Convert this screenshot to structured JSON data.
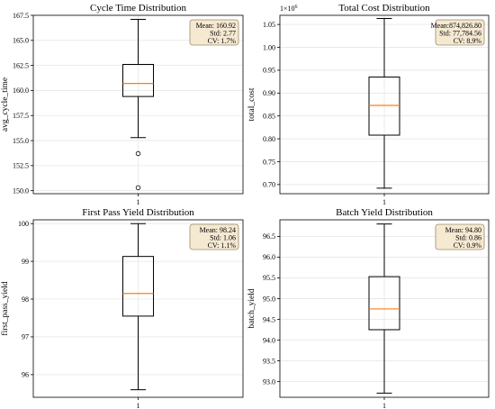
{
  "chart_data": [
    {
      "type": "box",
      "title": "Cycle Time Distribution",
      "xlabel": "",
      "ylabel": "avg_cycle_time",
      "categories": [
        "1"
      ],
      "ylim": [
        149.7,
        167.5
      ],
      "yticks": [
        150.0,
        152.5,
        155.0,
        157.5,
        160.0,
        162.5,
        165.0,
        167.5
      ],
      "ytick_labels": [
        "150.0",
        "152.5",
        "155.0",
        "157.5",
        "160.0",
        "162.5",
        "165.0",
        "167.5"
      ],
      "offset_label": "",
      "box": {
        "whisker_low": 155.3,
        "q1": 159.4,
        "median": 160.7,
        "q3": 162.6,
        "whisker_high": 167.1,
        "outliers": [
          153.7,
          150.3
        ]
      },
      "stats_box": [
        "Mean: 160.92",
        "Std: 2.77",
        "CV: 1.7%"
      ],
      "grid": true
    },
    {
      "type": "box",
      "title": "Total Cost Distribution",
      "xlabel": "",
      "ylabel": "total_cost",
      "categories": [
        "1"
      ],
      "ylim": [
        0.68,
        1.07
      ],
      "yticks": [
        0.7,
        0.75,
        0.8,
        0.85,
        0.9,
        0.95,
        1.0,
        1.05
      ],
      "ytick_labels": [
        "0.70",
        "0.75",
        "0.80",
        "0.85",
        "0.90",
        "0.95",
        "1.00",
        "1.05"
      ],
      "offset_label": "1e6",
      "box": {
        "whisker_low": 0.692,
        "q1": 0.808,
        "median": 0.873,
        "q3": 0.935,
        "whisker_high": 1.063,
        "outliers": []
      },
      "stats_box": [
        "Mean:874,826.80",
        "Std: 77,784.56",
        "CV: 8.9%"
      ],
      "grid": true
    },
    {
      "type": "box",
      "title": "First Pass Yield Distribution",
      "xlabel": "",
      "ylabel": "first_pass_yield",
      "categories": [
        "1"
      ],
      "ylim": [
        95.4,
        100.1
      ],
      "yticks": [
        96,
        97,
        98,
        99,
        100
      ],
      "ytick_labels": [
        "96",
        "97",
        "98",
        "99",
        "100"
      ],
      "offset_label": "",
      "box": {
        "whisker_low": 95.6,
        "q1": 97.55,
        "median": 98.15,
        "q3": 99.13,
        "whisker_high": 100.0,
        "outliers": []
      },
      "stats_box": [
        "Mean: 98.24",
        "Std: 1.06",
        "CV: 1.1%"
      ],
      "grid": true
    },
    {
      "type": "box",
      "title": "Batch Yield Distribution",
      "xlabel": "",
      "ylabel": "batch_yield",
      "categories": [
        "1"
      ],
      "ylim": [
        92.62,
        96.9
      ],
      "yticks": [
        93.0,
        93.5,
        94.0,
        94.5,
        95.0,
        95.5,
        96.0,
        96.5
      ],
      "ytick_labels": [
        "93.0",
        "93.5",
        "94.0",
        "94.5",
        "95.0",
        "95.5",
        "96.0",
        "96.5"
      ],
      "offset_label": "",
      "box": {
        "whisker_low": 92.72,
        "q1": 94.25,
        "median": 94.75,
        "q3": 95.53,
        "whisker_high": 96.8,
        "outliers": []
      },
      "stats_box": [
        "Mean: 94.80",
        "Std: 0.86",
        "CV: 0.9%"
      ],
      "grid": true
    }
  ],
  "colors": {
    "median": "#ff7f0e",
    "box_edge": "#000000",
    "grid": "#e6e6e6",
    "stats_fill": "#f5e9d2",
    "stats_edge": "#9a8a6a"
  }
}
